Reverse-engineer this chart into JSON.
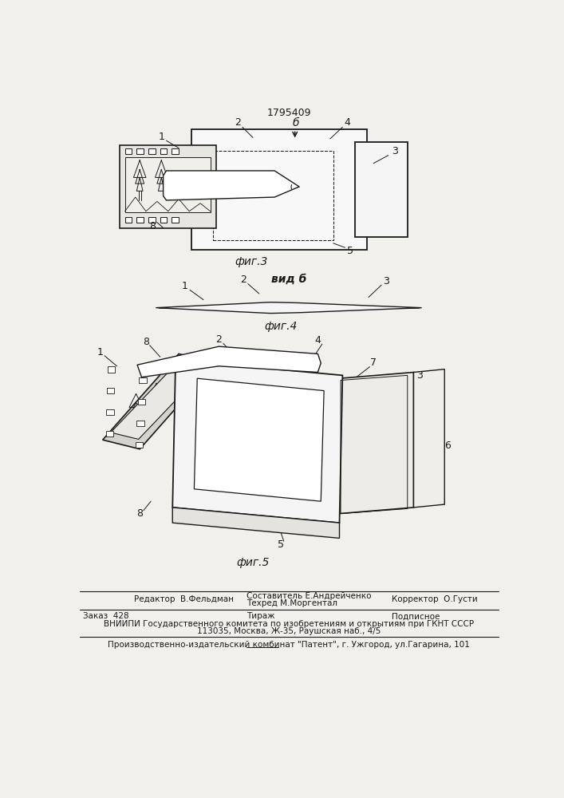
{
  "patent_number": "1795409",
  "bg_color": "#f2f0ec",
  "fig3_caption": "фиг.3",
  "fig4_caption": "фиг.4",
  "fig5_caption": "фиг.5",
  "vid_b_label": "вид б",
  "footer_line1_left": "Редактор  В.Фельдман",
  "footer_line1_center_top": "Составитель Е.Андрейченко",
  "footer_line1_center_bot": "Техред М.Моргентал",
  "footer_line1_right": "Корректор  О.Густи",
  "footer_line2_col1": "Заказ  428",
  "footer_line2_col2": "Тираж",
  "footer_line2_col3": "Подписное",
  "footer_line3": "ВНИИПИ Государственного комитета по изобретениям и открытиям при ГКНТ СССР",
  "footer_line4": "113035, Москва, Ж-35, Раушская наб., 4/5",
  "footer_line5": "Производственно-издательский комбинат \"Патент\", г. Ужгород, ул.Гагарина, 101",
  "lc": "#1a1a1a",
  "tc": "#1a1a1a"
}
